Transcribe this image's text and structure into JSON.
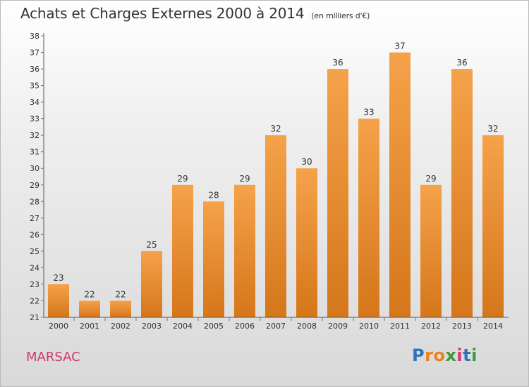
{
  "header": {
    "title": "Achats et Charges Externes 2000 à 2014",
    "unit": "(en milliers d'€)"
  },
  "footer": {
    "commune": "MARSAC",
    "brand": "Proxiti",
    "brand_letter_colors": [
      "#2e73b9",
      "#e8821e",
      "#e8821e",
      "#3a9b3c",
      "#d8327a",
      "#2e73b9",
      "#3a9b3c"
    ]
  },
  "colors": {
    "bar_top": "#f5a24a",
    "bar_bottom": "#d5761a",
    "axis": "#555555",
    "grid_tick": "#777777",
    "label": "#333333"
  },
  "chart_data": {
    "type": "bar",
    "categories": [
      "2000",
      "2001",
      "2002",
      "2003",
      "2004",
      "2005",
      "2006",
      "2007",
      "2008",
      "2009",
      "2010",
      "2011",
      "2012",
      "2013",
      "2014"
    ],
    "values": [
      23,
      22,
      22,
      25,
      29,
      28,
      29,
      32,
      30,
      36,
      33,
      37,
      29,
      36,
      32
    ],
    "data_labels": [
      "23",
      "22",
      "22",
      "25",
      "29",
      "28",
      "29",
      "32",
      "30",
      "36",
      "33",
      "37",
      "29",
      "36",
      "32"
    ],
    "ylim": [
      21,
      38
    ],
    "yticks": [
      "21",
      "22",
      "23",
      "24",
      "25",
      "26",
      "27",
      "28",
      "29",
      "30",
      "31",
      "32",
      "33",
      "34",
      "35",
      "36",
      "37",
      "38"
    ],
    "grid": false
  }
}
